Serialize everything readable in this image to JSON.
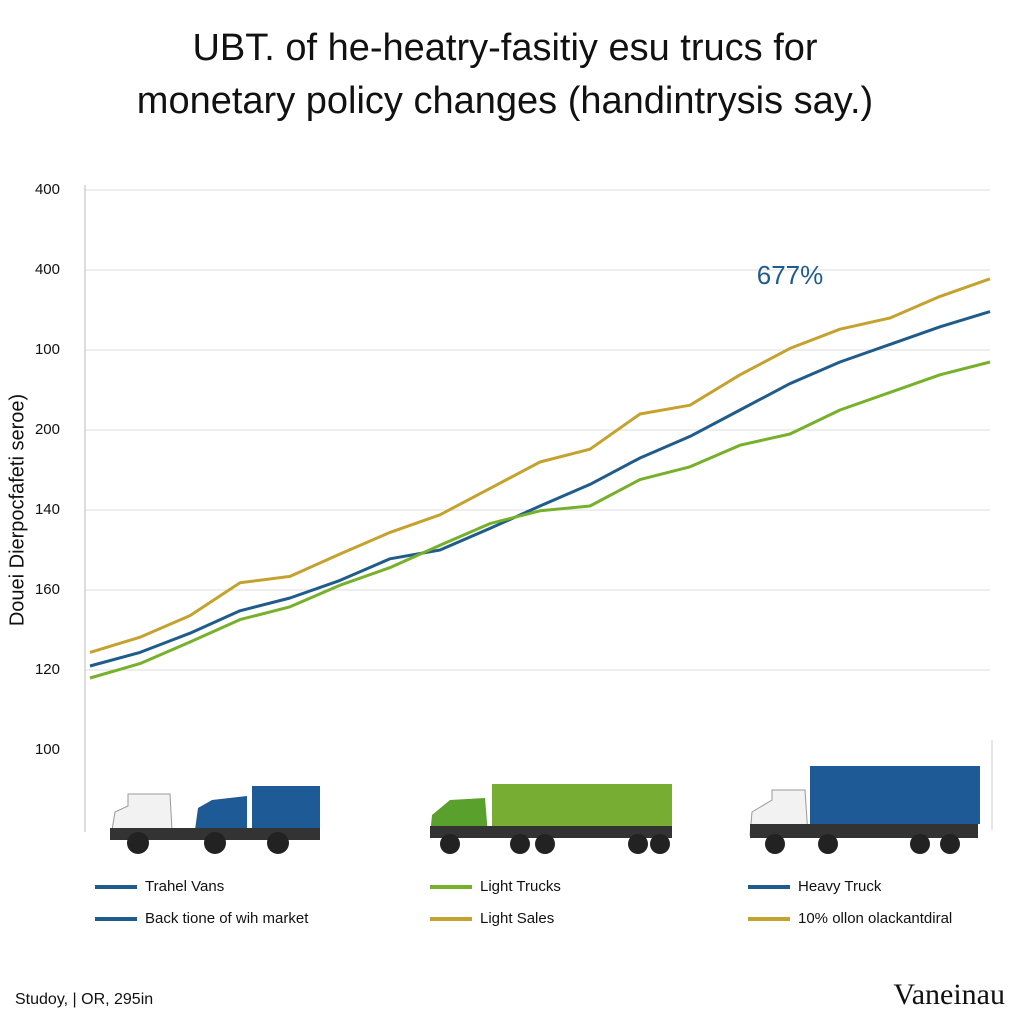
{
  "chart_data": {
    "type": "line",
    "title": [
      "UBT. of he-heatry-fasitiy esu trucs for",
      "monetary policy changes (handintrysis say.)"
    ],
    "y_axis_label": "Douei Dierpocfafeti seroe)",
    "annotation": "677%",
    "categories": [
      null,
      null,
      null,
      null,
      null,
      null,
      null,
      null,
      null,
      null,
      null,
      null,
      null,
      null,
      null,
      null,
      null,
      null,
      null
    ],
    "series": [
      {
        "color": "#c5a22e",
        "values": [
          2.22,
          2.41,
          2.68,
          3.09,
          3.17,
          3.45,
          3.72,
          3.94,
          4.27,
          4.6,
          4.76,
          5.2,
          5.31,
          5.69,
          6.02,
          6.26,
          6.4,
          6.67,
          6.89
        ]
      },
      {
        "color": "#1f5c8b",
        "values": [
          2.05,
          2.22,
          2.46,
          2.74,
          2.9,
          3.12,
          3.39,
          3.5,
          3.77,
          4.05,
          4.32,
          4.65,
          4.92,
          5.25,
          5.58,
          5.85,
          6.07,
          6.29,
          6.48
        ]
      },
      {
        "color": "#77b02a",
        "values": [
          1.9,
          2.08,
          2.35,
          2.63,
          2.79,
          3.06,
          3.28,
          3.56,
          3.83,
          3.99,
          4.05,
          4.38,
          4.54,
          4.81,
          4.95,
          5.25,
          5.47,
          5.69,
          5.85
        ]
      }
    ],
    "ylim": [
      0,
      8
    ],
    "yticks": [
      {
        "value": 8,
        "label": "400"
      },
      {
        "value": 7,
        "label": "400"
      },
      {
        "value": 6,
        "label": "100"
      },
      {
        "value": 5,
        "label": "200"
      },
      {
        "value": 4,
        "label": "140"
      },
      {
        "value": 3,
        "label": "160"
      },
      {
        "value": 2,
        "label": "120"
      },
      {
        "value": 1,
        "label": "100"
      }
    ],
    "grid": true,
    "legend": [
      {
        "name": "Trahel Vans",
        "color": "#1f5c8b"
      },
      {
        "name": "Light Trucks",
        "color": "#77b02a"
      },
      {
        "name": "Heavy Truck",
        "color": "#1f5c8b"
      },
      {
        "name": "Back tione of wih market",
        "color": "#1f5c8b"
      },
      {
        "name": "Light Sales",
        "color": "#c5a22e"
      },
      {
        "name": "10% ollon olackantdiral",
        "color": "#c5a22e"
      }
    ],
    "footer_left": "Studoy, | OR, 295in",
    "footer_right": "Vaneinau"
  }
}
